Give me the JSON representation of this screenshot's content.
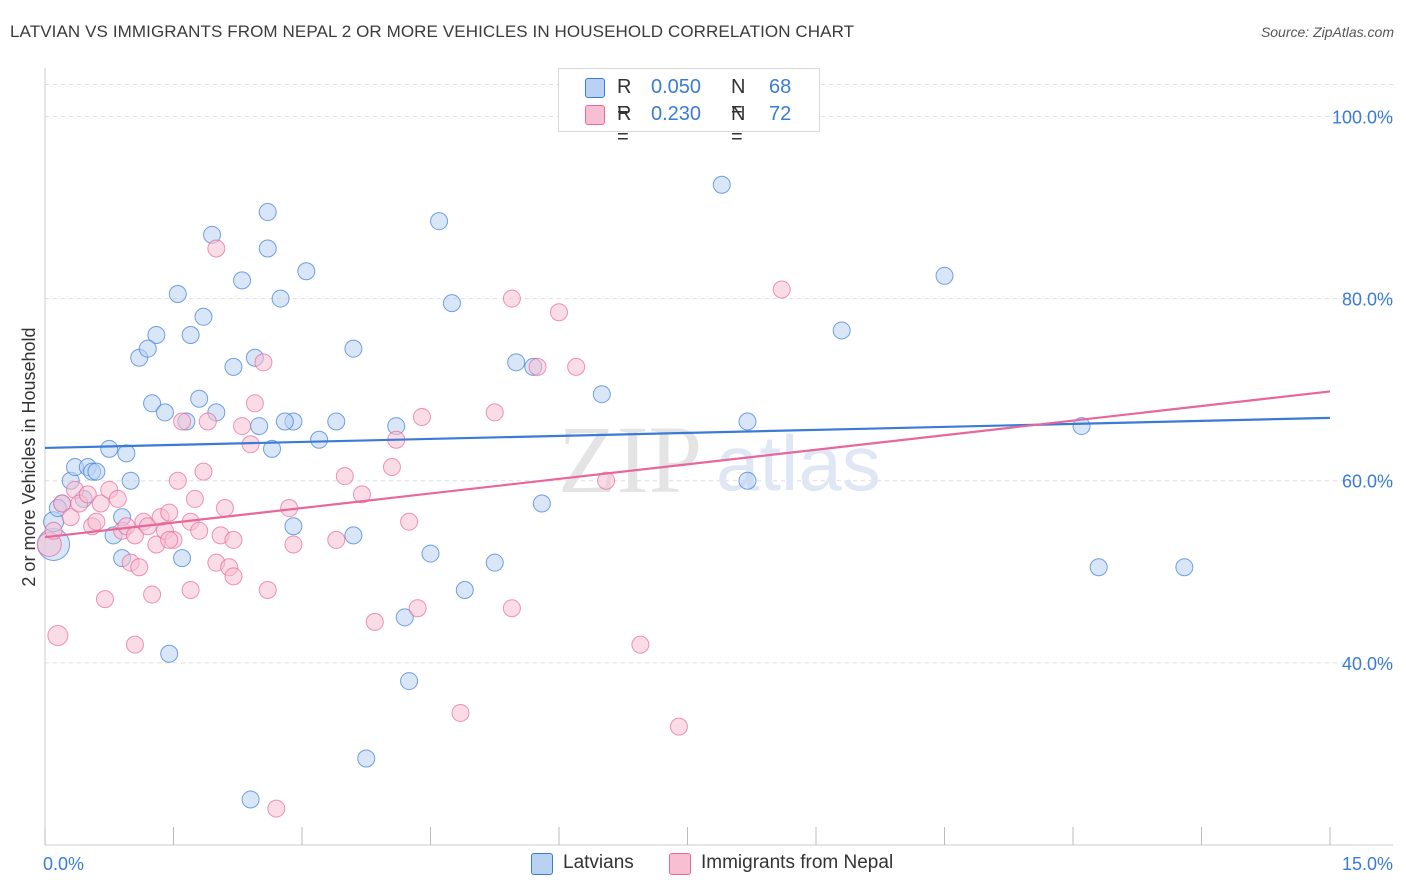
{
  "title": "LATVIAN VS IMMIGRANTS FROM NEPAL 2 OR MORE VEHICLES IN HOUSEHOLD CORRELATION CHART",
  "source": "Source: ZipAtlas.com",
  "watermark": {
    "zip": "ZIP",
    "atlas": "atlas"
  },
  "colors": {
    "blue": "#3a7bd5",
    "blue_fill": "#b9d1f3",
    "pink": "#e8679a",
    "pink_fill": "#f6bfd2",
    "axis_label": "#3a7bd5",
    "grid": "#dddddd"
  },
  "legend_top": [
    {
      "r_label": "R =",
      "r_value": "0.050",
      "n_label": "N =",
      "n_value": "68",
      "color": "#b9d1f3",
      "border": "#3a7bd5"
    },
    {
      "r_label": "R =",
      "r_value": "0.230",
      "n_label": "N =",
      "n_value": "72",
      "color": "#f6bfd2",
      "border": "#e8679a"
    }
  ],
  "legend_bottom": [
    {
      "label": "Latvians",
      "color": "#b9d1f3",
      "border": "#3a7bd5"
    },
    {
      "label": "Immigrants from Nepal",
      "color": "#f6bfd2",
      "border": "#e8679a"
    }
  ],
  "chart_data": {
    "type": "scatter",
    "title": "LATVIAN VS IMMIGRANTS FROM NEPAL 2 OR MORE VEHICLES IN HOUSEHOLD CORRELATION CHART",
    "xlabel": "",
    "ylabel": "2 or more Vehicles in Household",
    "xlim": [
      0,
      15
    ],
    "ylim": [
      20,
      104
    ],
    "x_tick_labels": [
      "0.0%",
      "15.0%"
    ],
    "x_tick_values": [
      0,
      15
    ],
    "y_tick_labels": [
      "40.0%",
      "60.0%",
      "80.0%",
      "100.0%"
    ],
    "y_tick_values": [
      40,
      60,
      80,
      100
    ],
    "grid": true,
    "legend_position": "top-center",
    "series": [
      {
        "name": "Latvians",
        "color": "#3a7bd5",
        "trend": {
          "x": [
            0,
            15
          ],
          "y": [
            63.6,
            66.9
          ]
        },
        "points": [
          [
            0.1,
            53.0
          ],
          [
            0.1,
            55.5
          ],
          [
            0.2,
            57.5
          ],
          [
            0.3,
            60.0
          ],
          [
            0.35,
            61.5
          ],
          [
            0.45,
            58.0
          ],
          [
            0.5,
            61.5
          ],
          [
            0.55,
            61.0
          ],
          [
            0.6,
            61.0
          ],
          [
            0.75,
            63.5
          ],
          [
            0.9,
            56.0
          ],
          [
            0.95,
            63.0
          ],
          [
            1.0,
            60.0
          ],
          [
            1.25,
            68.5
          ],
          [
            1.4,
            67.5
          ],
          [
            1.55,
            80.5
          ],
          [
            1.8,
            69.0
          ],
          [
            1.95,
            87.0
          ],
          [
            2.3,
            82.0
          ],
          [
            2.45,
            73.5
          ],
          [
            2.6,
            89.5
          ],
          [
            2.6,
            85.5
          ],
          [
            2.75,
            80.0
          ],
          [
            3.05,
            83.0
          ],
          [
            1.3,
            76.0
          ],
          [
            1.1,
            73.5
          ],
          [
            1.2,
            74.5
          ],
          [
            1.7,
            76.0
          ],
          [
            1.85,
            78.0
          ],
          [
            2.2,
            72.5
          ],
          [
            1.65,
            66.5
          ],
          [
            2.0,
            67.5
          ],
          [
            2.5,
            66.0
          ],
          [
            2.9,
            66.5
          ],
          [
            3.2,
            64.5
          ],
          [
            3.4,
            66.5
          ],
          [
            4.1,
            66.0
          ],
          [
            2.65,
            63.5
          ],
          [
            2.8,
            66.5
          ],
          [
            3.6,
            74.5
          ],
          [
            4.6,
            88.5
          ],
          [
            4.75,
            79.5
          ],
          [
            5.7,
            72.5
          ],
          [
            6.5,
            69.5
          ],
          [
            7.9,
            92.5
          ],
          [
            8.2,
            66.5
          ],
          [
            9.3,
            76.5
          ],
          [
            10.5,
            82.5
          ],
          [
            0.9,
            51.5
          ],
          [
            1.6,
            51.5
          ],
          [
            2.9,
            55.0
          ],
          [
            3.6,
            54.0
          ],
          [
            4.5,
            52.0
          ],
          [
            4.9,
            48.0
          ],
          [
            5.25,
            51.0
          ],
          [
            5.8,
            57.5
          ],
          [
            4.2,
            45.0
          ],
          [
            4.25,
            38.0
          ],
          [
            1.45,
            41.0
          ],
          [
            3.75,
            29.5
          ],
          [
            2.4,
            25.0
          ],
          [
            12.1,
            66.0
          ],
          [
            12.3,
            50.5
          ],
          [
            13.3,
            50.5
          ],
          [
            8.2,
            60.0
          ],
          [
            5.5,
            73.0
          ],
          [
            0.15,
            57.0
          ],
          [
            0.8,
            54.0
          ]
        ],
        "sizes": [
          40,
          22,
          20
        ]
      },
      {
        "name": "Immigrants from Nepal",
        "color": "#e8679a",
        "trend": {
          "x": [
            0,
            15
          ],
          "y": [
            53.8,
            69.8
          ]
        },
        "points": [
          [
            0.05,
            53.0
          ],
          [
            0.1,
            54.5
          ],
          [
            0.15,
            43.0
          ],
          [
            0.2,
            57.5
          ],
          [
            0.3,
            56.0
          ],
          [
            0.35,
            59.0
          ],
          [
            0.4,
            57.5
          ],
          [
            0.5,
            58.5
          ],
          [
            0.55,
            55.0
          ],
          [
            0.65,
            57.5
          ],
          [
            0.75,
            59.0
          ],
          [
            0.85,
            58.0
          ],
          [
            0.9,
            54.5
          ],
          [
            0.95,
            55.0
          ],
          [
            1.0,
            51.0
          ],
          [
            1.05,
            54.0
          ],
          [
            1.1,
            50.5
          ],
          [
            1.15,
            55.5
          ],
          [
            1.2,
            55.0
          ],
          [
            1.3,
            53.0
          ],
          [
            1.35,
            56.0
          ],
          [
            1.4,
            54.5
          ],
          [
            1.45,
            56.5
          ],
          [
            1.5,
            53.5
          ],
          [
            1.6,
            66.5
          ],
          [
            1.7,
            55.5
          ],
          [
            1.75,
            58.0
          ],
          [
            1.8,
            54.5
          ],
          [
            1.85,
            61.0
          ],
          [
            1.9,
            66.5
          ],
          [
            2.0,
            51.0
          ],
          [
            2.05,
            54.0
          ],
          [
            2.1,
            57.0
          ],
          [
            2.15,
            50.5
          ],
          [
            2.2,
            49.5
          ],
          [
            2.3,
            66.0
          ],
          [
            2.4,
            64.0
          ],
          [
            2.45,
            68.5
          ],
          [
            2.55,
            73.0
          ],
          [
            2.6,
            48.0
          ],
          [
            2.85,
            57.0
          ],
          [
            2.9,
            53.0
          ],
          [
            3.4,
            53.5
          ],
          [
            3.5,
            60.5
          ],
          [
            3.7,
            58.5
          ],
          [
            3.85,
            44.5
          ],
          [
            4.05,
            61.5
          ],
          [
            4.1,
            64.5
          ],
          [
            4.25,
            55.5
          ],
          [
            4.35,
            46.0
          ],
          [
            4.4,
            67.0
          ],
          [
            4.85,
            34.5
          ],
          [
            5.25,
            67.5
          ],
          [
            5.45,
            80.0
          ],
          [
            5.75,
            72.5
          ],
          [
            6.0,
            78.5
          ],
          [
            6.2,
            72.5
          ],
          [
            6.55,
            60.0
          ],
          [
            6.95,
            42.0
          ],
          [
            7.4,
            33.0
          ],
          [
            8.6,
            81.0
          ],
          [
            2.0,
            85.5
          ],
          [
            1.7,
            48.0
          ],
          [
            1.25,
            47.5
          ],
          [
            0.7,
            47.0
          ],
          [
            1.05,
            42.0
          ],
          [
            2.7,
            24.0
          ],
          [
            5.45,
            46.0
          ],
          [
            1.55,
            60.0
          ],
          [
            0.6,
            55.5
          ],
          [
            1.45,
            53.5
          ],
          [
            2.2,
            53.5
          ]
        ],
        "sizes": [
          22,
          20
        ]
      }
    ]
  },
  "ylabel_text": "2 or more Vehicles in Household"
}
